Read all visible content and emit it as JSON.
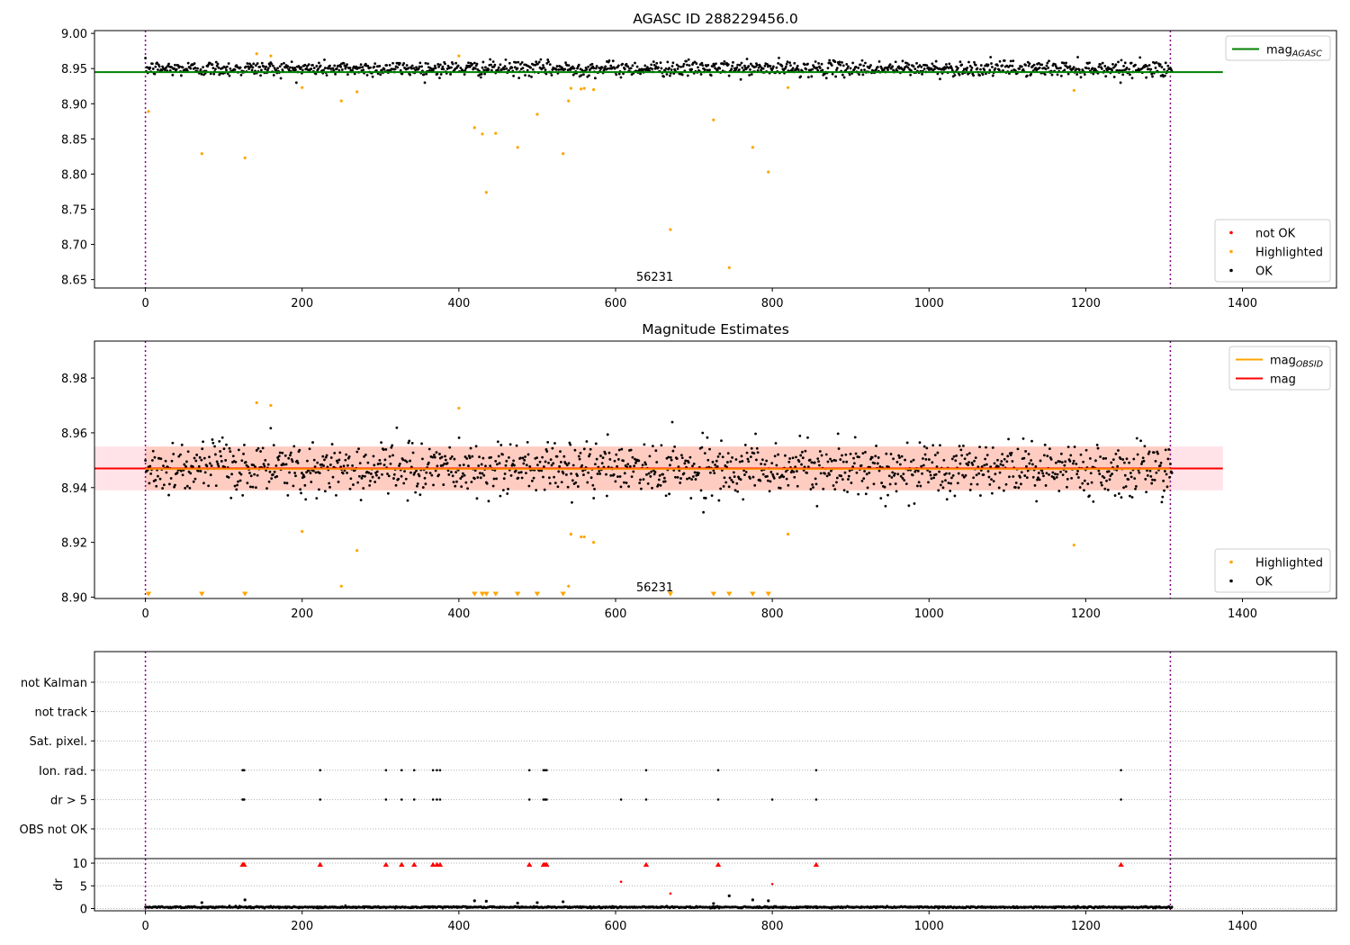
{
  "colors": {
    "ok": "#000000",
    "highlighted": "#ffa500",
    "not_ok": "#ff0000",
    "agasc_line": "#008000",
    "mag_line": "#ff0000",
    "obsid_line": "#ffa500",
    "band_pink": "#ffc0cb",
    "band_orange": "#ffa07a",
    "obs_vline": "#800080"
  },
  "chart_data": [
    {
      "type": "scatter",
      "title": "AGASC ID 288229456.0",
      "xlim": [
        -65,
        1520
      ],
      "ylim": [
        8.638,
        9.004
      ],
      "xticks": [
        0,
        200,
        400,
        600,
        800,
        1000,
        1200,
        1400
      ],
      "yticks": [
        8.65,
        8.7,
        8.75,
        8.8,
        8.85,
        8.9,
        8.95,
        9.0
      ],
      "ytick_labels": [
        "8.65",
        "8.70",
        "8.75",
        "8.80",
        "8.85",
        "8.90",
        "8.95",
        "9.00"
      ],
      "obsid_label": "56231",
      "obs_boundaries": [
        0,
        1308
      ],
      "lines": [
        {
          "name": "mag_AGASC",
          "y": 8.945,
          "x_range": [
            -65,
            1375
          ]
        }
      ],
      "legends": [
        {
          "position": "top-right",
          "entries": [
            {
              "label": "mag",
              "sub": "AGASC",
              "kind": "line",
              "color": "agasc_line"
            }
          ]
        },
        {
          "position": "bottom-right",
          "entries": [
            {
              "label": "not OK",
              "kind": "marker",
              "color": "not_ok"
            },
            {
              "label": "Highlighted",
              "kind": "marker",
              "color": "highlighted"
            },
            {
              "label": "OK",
              "kind": "marker",
              "color": "ok"
            }
          ]
        }
      ],
      "series": [
        {
          "name": "OK",
          "color": "ok",
          "n": 1320,
          "x_range": [
            0,
            1310
          ],
          "y_center": 8.95,
          "y_spread": 0.009
        },
        {
          "name": "Highlighted",
          "color": "highlighted",
          "points": [
            [
              4,
              8.889
            ],
            [
              72,
              8.829
            ],
            [
              127,
              8.823
            ],
            [
              142,
              8.971
            ],
            [
              160,
              8.968
            ],
            [
              200,
              8.923
            ],
            [
              250,
              8.904
            ],
            [
              270,
              8.917
            ],
            [
              400,
              8.968
            ],
            [
              420,
              8.866
            ],
            [
              430,
              8.857
            ],
            [
              435,
              8.774
            ],
            [
              447,
              8.858
            ],
            [
              475,
              8.838
            ],
            [
              500,
              8.885
            ],
            [
              533,
              8.829
            ],
            [
              540,
              8.904
            ],
            [
              543,
              8.922
            ],
            [
              556,
              8.921
            ],
            [
              560,
              8.922
            ],
            [
              572,
              8.92
            ],
            [
              670,
              8.721
            ],
            [
              725,
              8.877
            ],
            [
              745,
              8.667
            ],
            [
              775,
              8.838
            ],
            [
              795,
              8.803
            ],
            [
              820,
              8.923
            ],
            [
              1185,
              8.919
            ]
          ]
        }
      ]
    },
    {
      "type": "scatter",
      "title": "Magnitude Estimates",
      "xlim": [
        -65,
        1520
      ],
      "ylim": [
        8.8995,
        8.9935
      ],
      "xticks": [
        0,
        200,
        400,
        600,
        800,
        1000,
        1200,
        1400
      ],
      "yticks": [
        8.9,
        8.92,
        8.94,
        8.96,
        8.98
      ],
      "ytick_labels": [
        "8.90",
        "8.92",
        "8.94",
        "8.96",
        "8.98"
      ],
      "obsid_label": "56231",
      "obs_boundaries": [
        0,
        1308
      ],
      "lines": [
        {
          "name": "mag",
          "y": 8.947,
          "color": "mag_line"
        },
        {
          "name": "mag_OBSID",
          "y": 8.9468,
          "color": "obsid_line"
        }
      ],
      "bands": [
        {
          "y_range": [
            8.939,
            8.955
          ],
          "x_range": [
            -65,
            1375
          ],
          "color": "band_pink"
        },
        {
          "y_range": [
            8.939,
            8.955
          ],
          "x_range": [
            0,
            1308
          ],
          "color": "band_orange"
        }
      ],
      "legends": [
        {
          "position": "top-right",
          "entries": [
            {
              "label": "mag",
              "sub": "OBSID",
              "kind": "line",
              "color": "obsid_line"
            },
            {
              "label": "mag",
              "kind": "line",
              "color": "mag_line"
            }
          ]
        },
        {
          "position": "bottom-right",
          "entries": [
            {
              "label": "Highlighted",
              "kind": "marker",
              "color": "highlighted"
            },
            {
              "label": "OK",
              "kind": "marker",
              "color": "ok"
            }
          ]
        }
      ],
      "series": [
        {
          "name": "OK",
          "color": "ok",
          "n": 1320,
          "x_range": [
            0,
            1310
          ],
          "y_center": 8.947,
          "y_spread": 0.008
        },
        {
          "name": "Highlighted",
          "color": "highlighted",
          "points": [
            [
              142,
              8.971
            ],
            [
              160,
              8.97
            ],
            [
              200,
              8.924
            ],
            [
              250,
              8.904
            ],
            [
              270,
              8.917
            ],
            [
              400,
              8.969
            ],
            [
              540,
              8.904
            ],
            [
              543,
              8.923
            ],
            [
              556,
              8.922
            ],
            [
              560,
              8.922
            ],
            [
              572,
              8.92
            ],
            [
              820,
              8.923
            ],
            [
              1185,
              8.919
            ]
          ]
        },
        {
          "name": "below-range",
          "color": "highlighted",
          "marker": "triangle-down",
          "y": 8.9005,
          "x": [
            4,
            72,
            127,
            420,
            430,
            435,
            447,
            475,
            500,
            533,
            670,
            725,
            745,
            775,
            795
          ]
        }
      ]
    },
    {
      "type": "scatter",
      "title": "",
      "xlim": [
        -65,
        1520
      ],
      "categories": [
        "not Kalman",
        "not track",
        "Sat. pixel.",
        "Ion. rad.",
        "dr > 5",
        "OBS not OK"
      ],
      "obs_boundaries": [
        0,
        1308
      ],
      "series": [
        {
          "name": "Ion. rad.",
          "x": [
            124,
            125,
            126,
            223,
            307,
            327,
            343,
            367,
            372,
            376,
            490,
            508,
            510,
            512,
            639,
            731,
            856,
            1245
          ]
        },
        {
          "name": "dr > 5",
          "x": [
            124,
            125,
            126,
            223,
            307,
            327,
            343,
            367,
            372,
            376,
            490,
            508,
            510,
            512,
            607,
            639,
            731,
            800,
            856,
            1245
          ]
        }
      ]
    },
    {
      "type": "scatter",
      "title": "",
      "xlim": [
        -65,
        1520
      ],
      "ylim": [
        -0.5,
        11
      ],
      "xticks": [
        0,
        200,
        400,
        600,
        800,
        1000,
        1200,
        1400
      ],
      "yticks": [
        0,
        5,
        10
      ],
      "ytick_labels": [
        "0",
        "5",
        "10"
      ],
      "ylabel": "dr",
      "obs_boundaries": [
        0,
        1308
      ],
      "series": [
        {
          "name": "OK",
          "color": "ok",
          "n": 1320,
          "x_range": [
            0,
            1310
          ],
          "y_center": 0.3,
          "y_spread": 0.15
        },
        {
          "name": "OK-high",
          "color": "ok",
          "points": [
            [
              72,
              1.3
            ],
            [
              127,
              1.9
            ],
            [
              420,
              1.7
            ],
            [
              435,
              1.6
            ],
            [
              475,
              1.2
            ],
            [
              500,
              1.3
            ],
            [
              533,
              1.5
            ],
            [
              725,
              1.1
            ],
            [
              745,
              2.8
            ],
            [
              775,
              1.9
            ],
            [
              795,
              1.7
            ]
          ]
        },
        {
          "name": "mid",
          "color": "not_ok",
          "points": [
            [
              607,
              5.9
            ],
            [
              670,
              3.3
            ],
            [
              800,
              5.4
            ]
          ]
        },
        {
          "name": "clipped",
          "color": "not_ok",
          "marker": "triangle-up",
          "y": 9.7,
          "x": [
            124,
            125,
            126,
            223,
            307,
            327,
            343,
            367,
            372,
            376,
            490,
            508,
            510,
            512,
            639,
            731,
            856,
            1245
          ]
        }
      ]
    }
  ]
}
